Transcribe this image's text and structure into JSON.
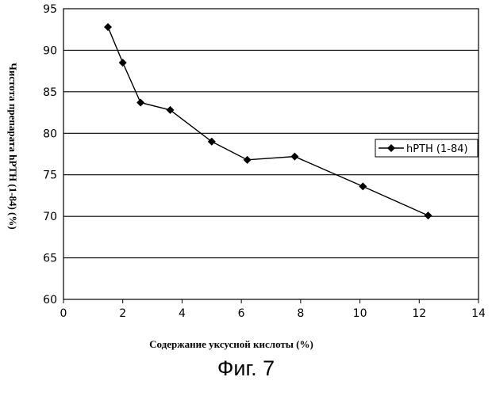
{
  "chart_data": {
    "type": "line",
    "title": "",
    "xlabel": "Содержание уксусной кислоты (%)",
    "ylabel": "Чистота препарата hPTH (1-84) (%)",
    "xlim": [
      0,
      14
    ],
    "ylim": [
      60,
      95
    ],
    "xticks": [
      "0",
      "2",
      "4",
      "6",
      "8",
      "10",
      "12",
      "14"
    ],
    "yticks": [
      "60",
      "65",
      "70",
      "75",
      "80",
      "85",
      "90",
      "95"
    ],
    "grid": "horizontal",
    "legend_position": "right",
    "series": [
      {
        "name": "hPTH (1-84)",
        "marker": "diamond",
        "color": "#000000",
        "x": [
          1.5,
          2.0,
          2.6,
          3.6,
          5.0,
          6.2,
          7.8,
          10.1,
          12.3
        ],
        "y": [
          92.8,
          88.5,
          83.7,
          82.8,
          79.0,
          76.8,
          77.2,
          73.6,
          70.1
        ]
      }
    ]
  },
  "caption": "Фиг. 7"
}
